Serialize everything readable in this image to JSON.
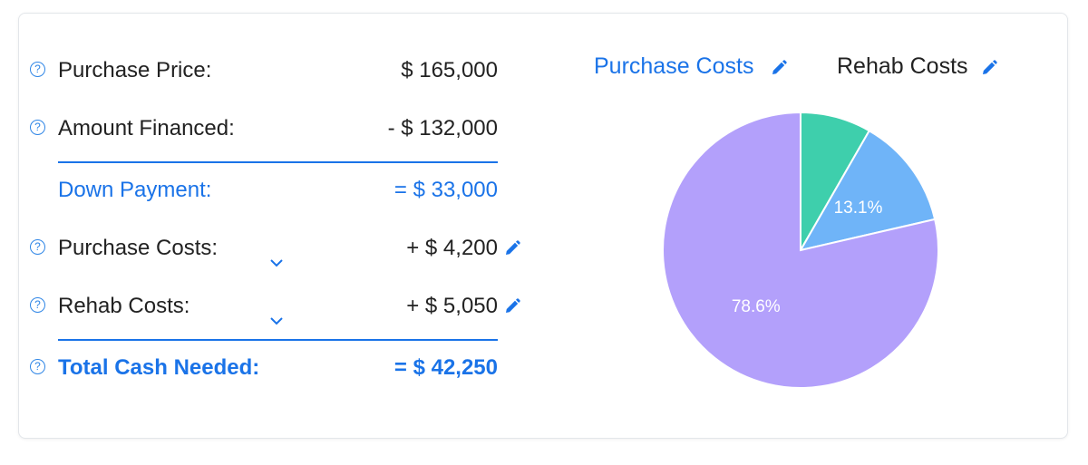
{
  "rows": [
    {
      "label": "Purchase Price:",
      "value": "$ 165,000"
    },
    {
      "label": "Amount Financed:",
      "value": "-  $ 132,000"
    },
    {
      "label": "Down Payment:",
      "value": "=  $ 33,000"
    },
    {
      "label": "Purchase Costs:",
      "value": "+  $ 4,200"
    },
    {
      "label": "Rehab Costs:",
      "value": "+  $ 5,050"
    },
    {
      "label": "Total Cash Needed:",
      "value": "=  $ 42,250"
    }
  ],
  "help_glyph": "?",
  "tabs": [
    {
      "label": "Purchase Costs",
      "active": true
    },
    {
      "label": "Rehab Costs",
      "active": false
    }
  ],
  "colors": {
    "accent": "#1a73e8",
    "slice_green": "#3ecfac",
    "slice_blue": "#6fb4f8",
    "slice_purple": "#b3a0fb"
  },
  "chart_data": {
    "type": "pie",
    "slices": [
      {
        "value": 8.3,
        "label": "",
        "color": "#3ecfac"
      },
      {
        "value": 13.1,
        "label": "13.1%",
        "color": "#6fb4f8"
      },
      {
        "value": 78.6,
        "label": "78.6%",
        "color": "#b3a0fb"
      }
    ]
  }
}
